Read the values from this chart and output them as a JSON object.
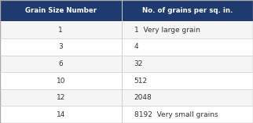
{
  "header": [
    "Grain Size Number",
    "No. of grains per sq. in."
  ],
  "rows": [
    [
      "1",
      "1  Very large grain"
    ],
    [
      "3",
      "4"
    ],
    [
      "6",
      "32"
    ],
    [
      "10",
      "512"
    ],
    [
      "12",
      "2048"
    ],
    [
      "14",
      "8192  Very small grains"
    ]
  ],
  "header_bg": "#1e3a6e",
  "header_fg": "#ffffff",
  "row_bg_even": "#f5f5f5",
  "row_bg_odd": "#ffffff",
  "border_color": "#aaaaaa",
  "text_color": "#333333",
  "divider_color": "#cccccc",
  "col_split": 0.48
}
